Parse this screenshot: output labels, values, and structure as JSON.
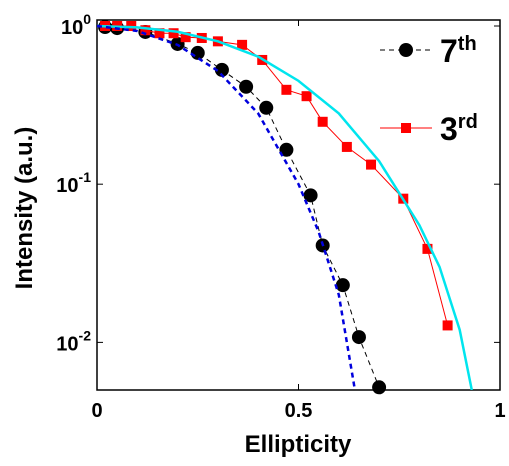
{
  "chart_data": {
    "type": "line",
    "xlabel": "Ellipticity",
    "ylabel": "Intensity (a.u.)",
    "xlim": [
      0,
      1
    ],
    "xticks": [
      0,
      0.5,
      1
    ],
    "ylim": [
      0.005,
      1
    ],
    "log_y": true,
    "yticks": [
      {
        "value": 1,
        "label": "10",
        "exponent": "0"
      },
      {
        "value": 0.1,
        "label": "10",
        "exponent": "-1"
      },
      {
        "value": 0.01,
        "label": "10",
        "exponent": "-2"
      }
    ],
    "series": [
      {
        "name": "7th",
        "color": "#000000",
        "marker": "circle",
        "dash": true,
        "legend": true,
        "x": [
          0.02,
          0.05,
          0.12,
          0.2,
          0.25,
          0.31,
          0.37,
          0.42,
          0.47,
          0.53,
          0.56,
          0.61,
          0.65,
          0.7
        ],
        "values": [
          0.985,
          0.97,
          0.917,
          0.77,
          0.676,
          0.528,
          0.413,
          0.304,
          0.165,
          0.085,
          0.041,
          0.023,
          0.0108,
          0.0052
        ]
      },
      {
        "name": "3rd",
        "color": "#ff0000",
        "marker": "square",
        "dash": false,
        "legend": true,
        "x": [
          0.02,
          0.05,
          0.085,
          0.12,
          0.155,
          0.19,
          0.22,
          0.26,
          0.3,
          0.36,
          0.41,
          0.47,
          0.52,
          0.56,
          0.62,
          0.68,
          0.76,
          0.82,
          0.87
        ],
        "values": [
          1.0,
          1.0,
          1.0,
          0.94,
          0.9,
          0.9,
          0.85,
          0.84,
          0.8,
          0.76,
          0.61,
          0.395,
          0.36,
          0.248,
          0.172,
          0.133,
          0.081,
          0.039,
          0.0128
        ]
      },
      {
        "color": "#00e5ee",
        "marker": "none",
        "dash": false,
        "legend": false,
        "x": [
          0,
          0.1,
          0.2,
          0.3,
          0.4,
          0.5,
          0.6,
          0.7,
          0.8,
          0.85,
          0.9,
          0.93
        ],
        "values": [
          1,
          0.98,
          0.92,
          0.8,
          0.64,
          0.45,
          0.28,
          0.14,
          0.055,
          0.03,
          0.012,
          0.005
        ]
      },
      {
        "color": "#0000dd",
        "marker": "none",
        "dash": true,
        "legend": false,
        "x": [
          0,
          0.1,
          0.2,
          0.3,
          0.4,
          0.5,
          0.55,
          0.6,
          0.64
        ],
        "values": [
          1,
          0.93,
          0.76,
          0.52,
          0.28,
          0.1,
          0.05,
          0.02,
          0.005
        ]
      }
    ]
  }
}
